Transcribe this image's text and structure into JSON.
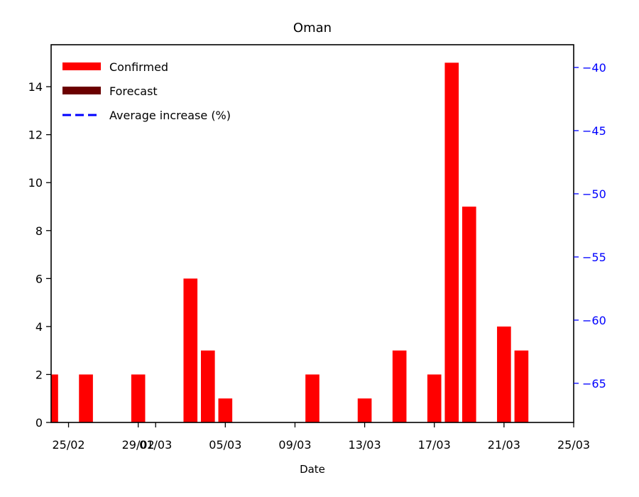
{
  "chart_data": {
    "type": "bar",
    "title": "Oman",
    "xlabel": "Date",
    "ylabel": "",
    "ylim": [
      0,
      15.75
    ],
    "y_ticks": [
      0,
      2,
      4,
      6,
      8,
      10,
      12,
      14
    ],
    "y2lim": [
      -68.1,
      -38.2
    ],
    "y2_ticks": [
      -40,
      -45,
      -50,
      -55,
      -60,
      -65
    ],
    "y2_tick_labels": [
      "−40",
      "−45",
      "−50",
      "−55",
      "−60",
      "−65"
    ],
    "x_ticks": [
      "2020-02-25",
      "2020-02-29",
      "2020-03-01",
      "2020-03-05",
      "2020-03-09",
      "2020-03-13",
      "2020-03-17",
      "2020-03-21",
      "2020-03-25"
    ],
    "x_tick_labels": [
      "25/02",
      "29/02",
      "01/03",
      "05/03",
      "09/03",
      "13/03",
      "17/03",
      "21/03",
      "25/03"
    ],
    "xlim": [
      "2020-02-24",
      "2020-03-25"
    ],
    "legend": {
      "position": "top-left",
      "entries": [
        "Confirmed",
        "Forecast",
        "Average increase (%)"
      ]
    },
    "series": [
      {
        "name": "Confirmed",
        "color": "#ff0000",
        "dates": [
          "2020-02-24",
          "2020-02-26",
          "2020-02-29",
          "2020-03-03",
          "2020-03-04",
          "2020-03-05",
          "2020-03-10",
          "2020-03-13",
          "2020-03-15",
          "2020-03-17",
          "2020-03-18",
          "2020-03-19",
          "2020-03-21",
          "2020-03-22"
        ],
        "values": [
          2,
          2,
          2,
          6,
          3,
          1,
          2,
          1,
          3,
          2,
          15,
          9,
          4,
          3
        ]
      },
      {
        "name": "Forecast",
        "color": "#6b0000",
        "dates": [],
        "values": []
      },
      {
        "name": "Average increase (%)",
        "color": "#0000ff",
        "style": "dashed",
        "dates": [],
        "values": []
      }
    ],
    "colors": {
      "axis": "#000000",
      "right_axis": "#0000ff"
    }
  }
}
